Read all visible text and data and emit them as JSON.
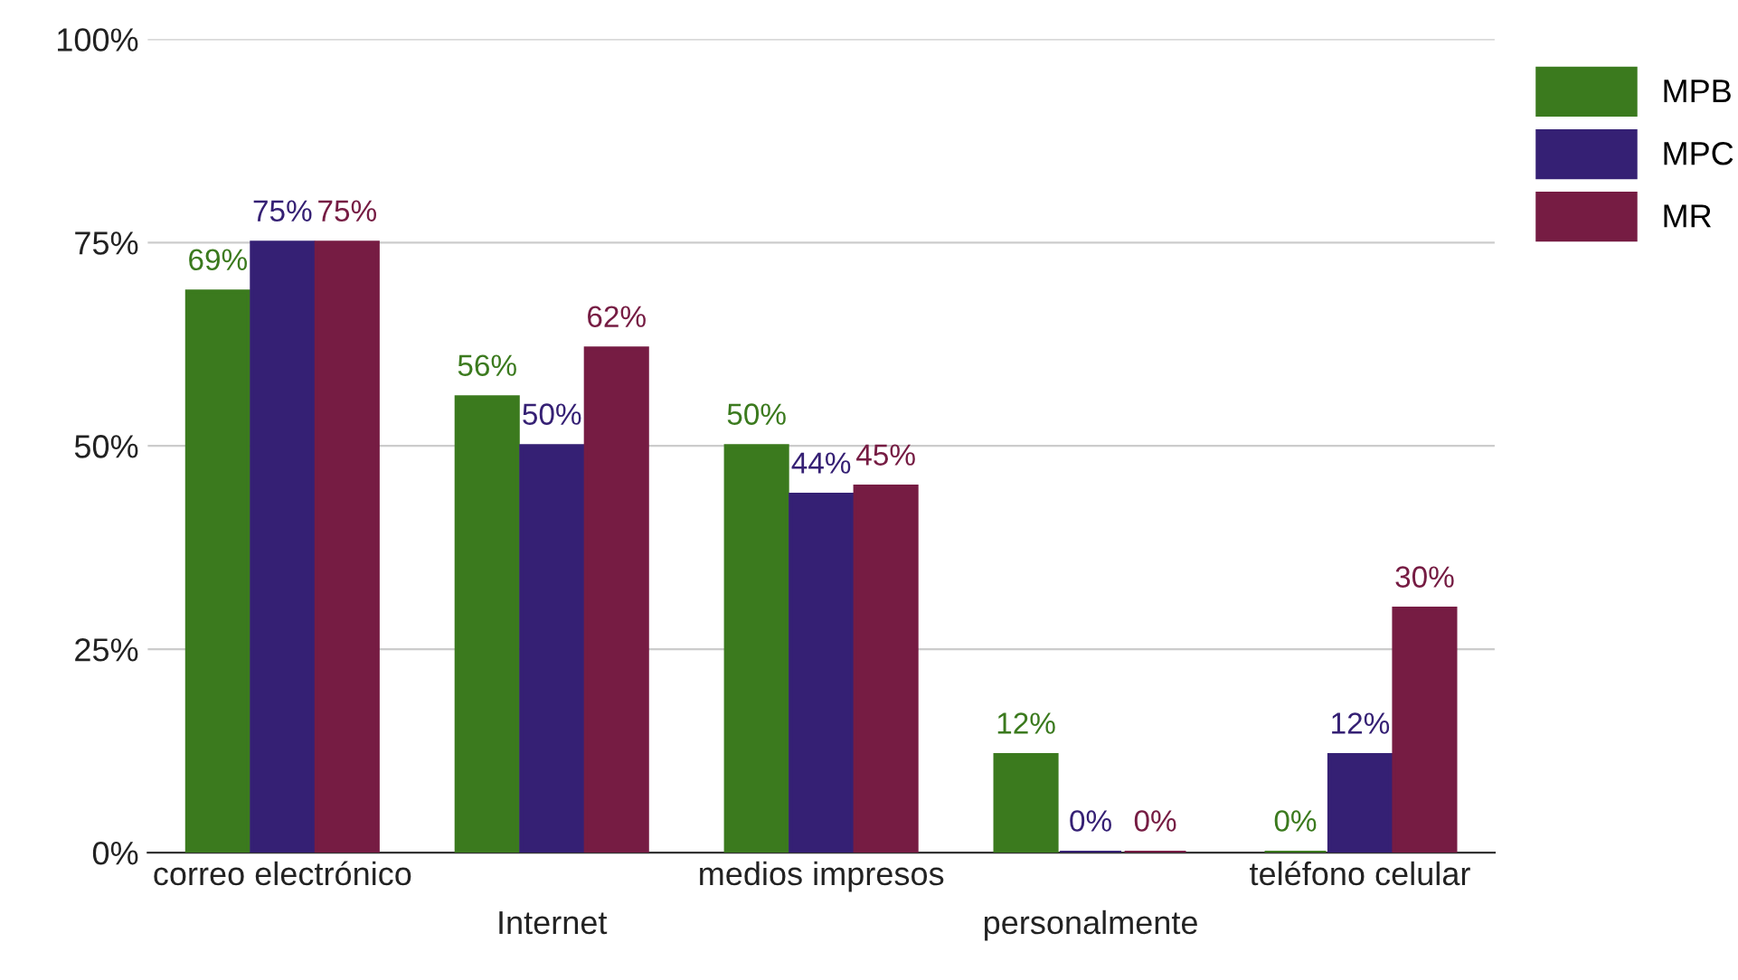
{
  "chart_data": {
    "type": "bar",
    "categories": [
      "correo electrónico",
      "Internet",
      "medios impresos",
      "personalmente",
      "teléfono celular"
    ],
    "series": [
      {
        "name": "MPB",
        "color": "#3b7a1e",
        "values": [
          69,
          56,
          50,
          12,
          0
        ],
        "value_labels": [
          "69%",
          "56%",
          "50%",
          "12%",
          "0%"
        ]
      },
      {
        "name": "MPC",
        "color": "#352074",
        "values": [
          75,
          50,
          44,
          0,
          12
        ],
        "value_labels": [
          "75%",
          "50%",
          "44%",
          "0%",
          "12%"
        ]
      },
      {
        "name": "MR",
        "color": "#761c43",
        "values": [
          75,
          62,
          45,
          0,
          30
        ],
        "value_labels": [
          "75%",
          "62%",
          "45%",
          "0%",
          "30%"
        ]
      }
    ],
    "ylim": [
      0,
      100
    ],
    "yticks": [
      {
        "value": 0,
        "label": "0%"
      },
      {
        "value": 25,
        "label": "25%"
      },
      {
        "value": 50,
        "label": "50%"
      },
      {
        "value": 75,
        "label": "75%"
      },
      {
        "value": 100,
        "label": "100%"
      }
    ],
    "grid": "y",
    "legend": "top right"
  }
}
